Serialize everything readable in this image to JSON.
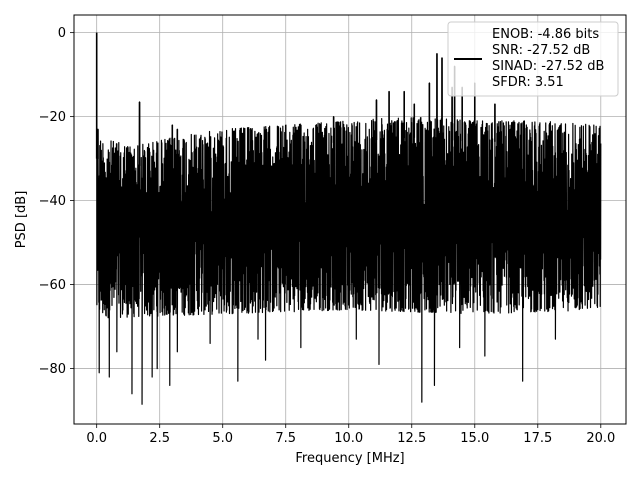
{
  "chart_data": {
    "type": "line",
    "title": "",
    "xlabel": "Frequency [MHz]",
    "ylabel": "PSD [dB]",
    "xlim": [
      -0.9,
      21.0
    ],
    "ylim": [
      -93.2,
      4.2
    ],
    "x_ticks": [
      0.0,
      2.5,
      5.0,
      7.5,
      10.0,
      12.5,
      15.0,
      17.5,
      20.0
    ],
    "x_tick_labels": [
      "0.0",
      "2.5",
      "5.0",
      "7.5",
      "10.0",
      "12.5",
      "15.0",
      "17.5",
      "20.0"
    ],
    "y_ticks": [
      0,
      -20,
      -40,
      -60,
      -80
    ],
    "y_tick_labels": [
      "0",
      "−20",
      "−40",
      "−60",
      "−80"
    ],
    "grid": true,
    "legend": {
      "placement": "top-right",
      "entries": [
        "ENOB: -4.86 bits",
        "SNR: -27.52 dB",
        "SINAD: -27.52 dB",
        "SFDR: 3.51"
      ]
    },
    "series": [
      {
        "color": "#000000",
        "description_of_shape": "dense noise floor",
        "x_range": [
          0.0,
          20.0
        ],
        "envelope_upper": [
          {
            "x": 0.0,
            "y": -25
          },
          {
            "x": 1.5,
            "y": -27
          },
          {
            "x": 3.0,
            "y": -25
          },
          {
            "x": 5.0,
            "y": -23
          },
          {
            "x": 7.5,
            "y": -22
          },
          {
            "x": 10.0,
            "y": -21
          },
          {
            "x": 12.5,
            "y": -20
          },
          {
            "x": 15.0,
            "y": -21
          },
          {
            "x": 17.5,
            "y": -21
          },
          {
            "x": 20.0,
            "y": -22
          }
        ],
        "envelope_lower": [
          {
            "x": 0.0,
            "y": -68
          },
          {
            "x": 5.0,
            "y": -67
          },
          {
            "x": 10.0,
            "y": -66
          },
          {
            "x": 15.0,
            "y": -67
          },
          {
            "x": 20.0,
            "y": -66
          }
        ],
        "peaks": [
          {
            "x": 0.0,
            "y": 0.0
          },
          {
            "x": 0.05,
            "y": -23
          },
          {
            "x": 1.7,
            "y": -16.5
          },
          {
            "x": 3.0,
            "y": -22
          },
          {
            "x": 3.2,
            "y": -23
          },
          {
            "x": 9.4,
            "y": -20
          },
          {
            "x": 11.1,
            "y": -16
          },
          {
            "x": 11.6,
            "y": -14
          },
          {
            "x": 12.2,
            "y": -14
          },
          {
            "x": 12.6,
            "y": -17
          },
          {
            "x": 13.2,
            "y": -12
          },
          {
            "x": 13.5,
            "y": -5
          },
          {
            "x": 13.7,
            "y": -6
          },
          {
            "x": 14.1,
            "y": -13
          },
          {
            "x": 14.2,
            "y": -8
          },
          {
            "x": 14.5,
            "y": -13
          },
          {
            "x": 15.0,
            "y": -12
          },
          {
            "x": 15.8,
            "y": -17
          }
        ],
        "dips": [
          {
            "x": 0.1,
            "y": -81
          },
          {
            "x": 0.5,
            "y": -82
          },
          {
            "x": 0.8,
            "y": -76
          },
          {
            "x": 1.4,
            "y": -86
          },
          {
            "x": 1.8,
            "y": -88.5
          },
          {
            "x": 2.2,
            "y": -82
          },
          {
            "x": 2.4,
            "y": -80
          },
          {
            "x": 2.9,
            "y": -84
          },
          {
            "x": 3.2,
            "y": -76
          },
          {
            "x": 4.5,
            "y": -74
          },
          {
            "x": 5.6,
            "y": -83
          },
          {
            "x": 6.4,
            "y": -73
          },
          {
            "x": 6.7,
            "y": -78
          },
          {
            "x": 8.1,
            "y": -75
          },
          {
            "x": 10.3,
            "y": -73
          },
          {
            "x": 11.2,
            "y": -79
          },
          {
            "x": 12.9,
            "y": -88
          },
          {
            "x": 13.4,
            "y": -84
          },
          {
            "x": 14.4,
            "y": -75
          },
          {
            "x": 15.4,
            "y": -77
          },
          {
            "x": 16.9,
            "y": -83
          },
          {
            "x": 18.2,
            "y": -73
          }
        ]
      }
    ]
  }
}
